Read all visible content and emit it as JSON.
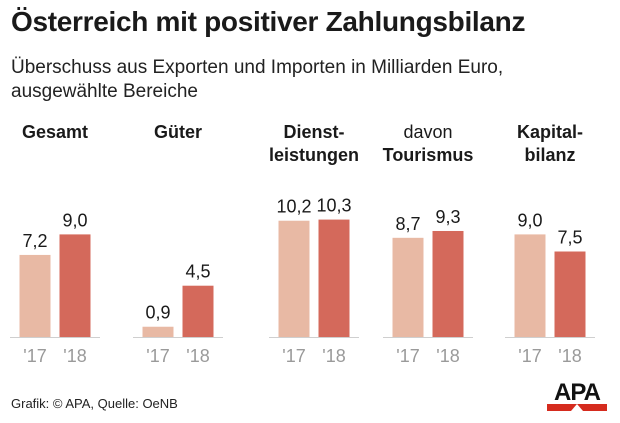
{
  "title": "Österreich mit positiver Zahlungsbilanz",
  "subtitle": "Überschuss aus Exporten und Importen in Milliarden Euro, ausgewählte Bereiche",
  "footer": "Grafik: © APA, Quelle: OeNB",
  "logo_text": "APA",
  "colors": {
    "bar_2017": "#e8b9a4",
    "bar_2018": "#d4695b",
    "axis": "#cfcfcf",
    "tick": "#9a9a9a",
    "logo": "#d52b1e"
  },
  "chart_data": {
    "type": "bar",
    "title": "Österreich mit positiver Zahlungsbilanz",
    "ylabel": "Milliarden Euro",
    "ylim": [
      0,
      11
    ],
    "years": [
      "'17",
      "'18"
    ],
    "groups": [
      {
        "label_lines": [
          {
            "text": "Gesamt",
            "bold": true
          }
        ],
        "values": [
          7.2,
          9.0
        ],
        "value_labels": [
          "7,2",
          "9,0"
        ]
      },
      {
        "label_lines": [
          {
            "text": "Güter",
            "bold": true
          }
        ],
        "values": [
          0.9,
          4.5
        ],
        "value_labels": [
          "0,9",
          "4,5"
        ]
      },
      {
        "label_lines": [
          {
            "text": "Dienst-",
            "bold": true
          },
          {
            "text": "leistungen",
            "bold": true
          }
        ],
        "values": [
          10.2,
          10.3
        ],
        "value_labels": [
          "10,2",
          "10,3"
        ]
      },
      {
        "label_lines": [
          {
            "text": "davon",
            "bold": false
          },
          {
            "text": "Tourismus",
            "bold": true
          }
        ],
        "values": [
          8.7,
          9.3
        ],
        "value_labels": [
          "8,7",
          "9,3"
        ]
      },
      {
        "label_lines": [
          {
            "text": "Kapital-",
            "bold": true
          },
          {
            "text": "bilanz",
            "bold": true
          }
        ],
        "values": [
          9.0,
          7.5
        ],
        "value_labels": [
          "9,0",
          "7,5"
        ]
      }
    ]
  }
}
